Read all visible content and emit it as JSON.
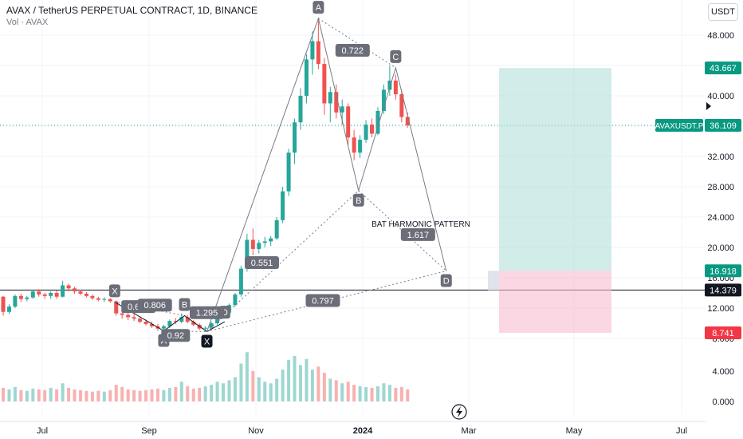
{
  "header": {
    "title": "AVAX / TetherUS PERPETUAL CONTRACT, 1D, BINANCE",
    "subtitle": "Vol · AVAX",
    "currency_button": "USDT"
  },
  "colors": {
    "up": "#26a69a",
    "down": "#ef5350",
    "target_zone": "#b2dfdb",
    "stop_zone": "#f8bbd0",
    "pattern_line": "#787b86",
    "label_bg": "#6b6e78"
  },
  "chart_data": {
    "type": "candlestick",
    "x_ticks": [
      "Jul",
      "Sep",
      "Nov",
      "2024",
      "Mar",
      "May",
      "Jul"
    ],
    "price_ticks": [
      "48.000",
      "44.000",
      "40.000",
      "36.000",
      "32.000",
      "28.000",
      "24.000",
      "20.000",
      "16.000",
      "12.000",
      "8.000"
    ],
    "volume_ticks": [
      "4.000",
      "0.000"
    ],
    "price_axis_labels": [
      {
        "text": "43.667",
        "value": 43.667,
        "style": "target"
      },
      {
        "text": "36.109",
        "value": 36.109,
        "style": "target",
        "prefix": "AVAXUSDT.P"
      },
      {
        "text": "16.918",
        "value": 16.918,
        "style": "target"
      },
      {
        "text": "14.379",
        "value": 14.379,
        "style": "dark"
      },
      {
        "text": "8.741",
        "value": 8.741,
        "style": "stop"
      }
    ],
    "price_line": 14.379,
    "close_line": 36.109,
    "candles": [
      [
        "06-01",
        13.5,
        13.6,
        11.0,
        11.5
      ],
      [
        "06-05",
        11.5,
        12.5,
        11.2,
        12.2
      ],
      [
        "06-09",
        12.2,
        13.8,
        12.0,
        13.6
      ],
      [
        "06-13",
        13.6,
        13.9,
        12.8,
        13.2
      ],
      [
        "06-17",
        13.2,
        13.6,
        12.9,
        13.4
      ],
      [
        "06-21",
        13.4,
        14.4,
        13.2,
        14.2
      ],
      [
        "06-25",
        14.2,
        14.5,
        13.5,
        13.8
      ],
      [
        "06-29",
        13.8,
        14.0,
        13.2,
        13.6
      ],
      [
        "07-03",
        13.6,
        14.2,
        13.2,
        14.0
      ],
      [
        "07-07",
        14.0,
        14.3,
        13.2,
        13.5
      ],
      [
        "07-11",
        13.5,
        15.6,
        13.4,
        15.0
      ],
      [
        "07-15",
        15.0,
        15.2,
        14.2,
        14.6
      ],
      [
        "07-19",
        14.6,
        14.8,
        13.9,
        14.2
      ],
      [
        "07-23",
        14.2,
        14.4,
        13.7,
        13.9
      ],
      [
        "07-27",
        13.9,
        14.1,
        13.4,
        13.6
      ],
      [
        "07-31",
        13.6,
        13.8,
        13.1,
        13.3
      ],
      [
        "08-04",
        13.3,
        13.5,
        12.9,
        13.1
      ],
      [
        "08-08",
        13.1,
        13.4,
        12.8,
        13.2
      ],
      [
        "08-12",
        13.2,
        13.3,
        12.7,
        12.9
      ],
      [
        "08-16",
        12.9,
        13.0,
        11.0,
        11.3
      ],
      [
        "08-20",
        11.3,
        11.8,
        10.6,
        11.1
      ],
      [
        "08-24",
        11.1,
        11.4,
        10.4,
        10.8
      ],
      [
        "08-28",
        10.8,
        11.2,
        10.3,
        10.6
      ],
      [
        "09-01",
        10.6,
        10.9,
        10.0,
        10.2
      ],
      [
        "09-05",
        10.2,
        10.5,
        9.7,
        9.9
      ],
      [
        "09-09",
        9.9,
        10.2,
        9.4,
        9.6
      ],
      [
        "09-13",
        9.6,
        9.9,
        9.0,
        9.3
      ],
      [
        "09-17",
        9.3,
        9.8,
        9.0,
        9.6
      ],
      [
        "09-21",
        9.6,
        10.5,
        9.4,
        10.3
      ],
      [
        "09-25",
        10.3,
        10.7,
        9.9,
        10.2
      ],
      [
        "09-29",
        10.2,
        11.3,
        10.0,
        10.8
      ],
      [
        "10-03",
        10.8,
        11.1,
        10.0,
        10.2
      ],
      [
        "10-07",
        10.2,
        10.4,
        9.6,
        9.8
      ],
      [
        "10-11",
        9.8,
        10.0,
        9.1,
        9.3
      ],
      [
        "10-15",
        9.3,
        9.6,
        8.9,
        9.4
      ],
      [
        "10-19",
        9.4,
        10.2,
        9.2,
        10.0
      ],
      [
        "10-23",
        10.0,
        11.2,
        9.8,
        11.0
      ],
      [
        "10-27",
        11.0,
        11.6,
        10.6,
        11.4
      ],
      [
        "10-31",
        11.4,
        12.6,
        11.1,
        12.4
      ],
      [
        "11-04",
        12.4,
        14.0,
        12.2,
        13.8
      ],
      [
        "11-08",
        13.8,
        17.6,
        13.5,
        17.2
      ],
      [
        "11-12",
        17.2,
        21.8,
        16.8,
        21.0
      ],
      [
        "11-16",
        21.0,
        22.5,
        19.0,
        19.8
      ],
      [
        "11-20",
        19.8,
        21.0,
        19.2,
        20.6
      ],
      [
        "11-24",
        20.6,
        21.4,
        20.0,
        20.8
      ],
      [
        "11-28",
        20.8,
        21.5,
        20.2,
        21.2
      ],
      [
        "12-02",
        21.2,
        24.0,
        21.0,
        23.6
      ],
      [
        "12-06",
        23.6,
        28.0,
        23.2,
        27.4
      ],
      [
        "12-10",
        27.4,
        33.0,
        26.8,
        32.5
      ],
      [
        "12-14",
        32.5,
        37.0,
        31.0,
        36.5
      ],
      [
        "12-18",
        36.5,
        41.0,
        35.5,
        40.0
      ],
      [
        "12-22",
        40.0,
        45.5,
        39.0,
        44.8
      ],
      [
        "12-26",
        44.8,
        48.5,
        42.8,
        47.2
      ],
      [
        "12-30",
        47.2,
        50.2,
        43.5,
        44.2
      ],
      [
        "01-03",
        44.2,
        45.0,
        37.5,
        39.0
      ],
      [
        "01-07",
        39.0,
        41.2,
        36.5,
        40.5
      ],
      [
        "01-11",
        40.5,
        41.5,
        37.0,
        37.8
      ],
      [
        "01-15",
        37.8,
        39.5,
        36.2,
        38.6
      ],
      [
        "01-19",
        38.6,
        39.0,
        33.5,
        34.5
      ],
      [
        "01-23",
        34.5,
        35.5,
        31.5,
        32.5
      ],
      [
        "01-27",
        32.5,
        34.8,
        31.8,
        34.2
      ],
      [
        "01-31",
        34.2,
        36.8,
        33.8,
        36.2
      ],
      [
        "02-04",
        36.2,
        37.0,
        34.5,
        35.0
      ],
      [
        "02-08",
        35.0,
        38.5,
        34.8,
        38.0
      ],
      [
        "02-12",
        38.0,
        41.5,
        37.6,
        40.8
      ],
      [
        "02-16",
        40.8,
        44.0,
        40.0,
        42.0
      ],
      [
        "02-20",
        42.0,
        42.8,
        39.5,
        40.2
      ],
      [
        "02-24",
        40.2,
        40.8,
        36.5,
        37.2
      ],
      [
        "02-28",
        37.2,
        37.8,
        35.8,
        36.1
      ]
    ],
    "volume": [
      1.8,
      1.6,
      1.9,
      1.5,
      1.4,
      1.7,
      1.6,
      1.5,
      1.8,
      1.6,
      2.4,
      1.8,
      1.6,
      1.5,
      1.4,
      1.3,
      1.4,
      1.3,
      1.5,
      2.2,
      1.9,
      1.6,
      1.5,
      1.4,
      1.5,
      1.6,
      1.7,
      1.5,
      1.8,
      1.9,
      2.6,
      2.0,
      1.7,
      1.8,
      2.0,
      2.2,
      2.6,
      2.4,
      2.8,
      3.2,
      5.0,
      6.5,
      4.0,
      3.2,
      2.6,
      2.4,
      3.0,
      4.2,
      5.5,
      6.0,
      4.8,
      5.6,
      4.2,
      4.6,
      3.8,
      3.0,
      2.8,
      2.4,
      2.6,
      2.2,
      2.0,
      1.9,
      1.8,
      2.0,
      2.4,
      2.2,
      1.8,
      1.9,
      1.6
    ],
    "pattern": {
      "title": "BAT HARMONIC PATTERN",
      "points": [
        {
          "label": "X",
          "date": "08-15",
          "price": 12.8
        },
        {
          "label": "A",
          "date": "09-17",
          "price": 9.0
        },
        {
          "label": "B",
          "date": "10-01",
          "price": 11.0
        },
        {
          "label": "X",
          "date": "10-16",
          "price": 8.9
        },
        {
          "label": "D",
          "date": "10-28",
          "price": 10.2
        },
        {
          "label": "A",
          "date": "12-30",
          "price": 50.2
        },
        {
          "label": "B",
          "date": "01-26",
          "price": 27.5
        },
        {
          "label": "C",
          "date": "02-20",
          "price": 43.7
        },
        {
          "label": "D",
          "date": "03-25",
          "price": 16.9
        }
      ],
      "ratios": [
        {
          "text": "0.722",
          "date": "01-22",
          "price": 46.0
        },
        {
          "text": "0.551",
          "date": "11-22",
          "price": 18.0
        },
        {
          "text": "1.617",
          "date": "03-06",
          "price": 21.7
        },
        {
          "text": "0.797",
          "date": "01-02",
          "price": 13.0
        },
        {
          "text": "0.634",
          "date": "08-31",
          "price": 12.2
        },
        {
          "text": "0.806",
          "date": "09-11",
          "price": 12.4
        },
        {
          "text": "1.295",
          "date": "10-16",
          "price": 11.4
        },
        {
          "text": "0.92",
          "date": "09-25",
          "price": 8.4
        }
      ]
    },
    "position": {
      "entry": 16.918,
      "target": 43.667,
      "stop": 8.741,
      "start_date": "03-25",
      "end_date": "05-16"
    }
  }
}
